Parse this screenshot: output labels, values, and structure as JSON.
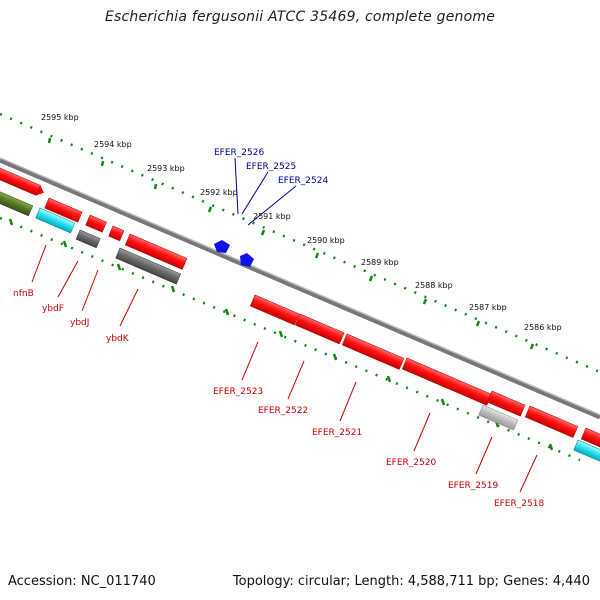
{
  "title": "Escherichia fergusonii ATCC 35469, complete genome",
  "footer": {
    "accession": "Accession: NC_011740",
    "topology": "Topology: circular; Length: 4,588,711 bp; Genes: 4,440"
  },
  "kbp_labels": [
    "2595 kbp",
    "2594 kbp",
    "2593 kbp",
    "2592 kbp",
    "2591 kbp",
    "2590 kbp",
    "2589 kbp",
    "2588 kbp",
    "2587 kbp",
    "2586 kbp"
  ],
  "gene_labels": {
    "blue": [
      "EFER_2526",
      "EFER_2525",
      "EFER_2524"
    ],
    "red": [
      "nfnB",
      "ybdF",
      "ybdJ",
      "ybdK",
      "EFER_2523",
      "EFER_2522",
      "EFER_2521",
      "EFER_2520",
      "EFER_2519",
      "EFER_2518"
    ]
  },
  "colors": {
    "gene_red": "#ff1111",
    "gene_cyan": "#22e0ee",
    "gene_olive": "#557722",
    "gene_darkgray": "#666666",
    "gene_lightgray": "#bbbbbb",
    "gene_blue": "#1010ee",
    "label_red": "#cc0000",
    "label_blue": "#000099",
    "tick_green": "#118811",
    "backbone": "#777777"
  }
}
